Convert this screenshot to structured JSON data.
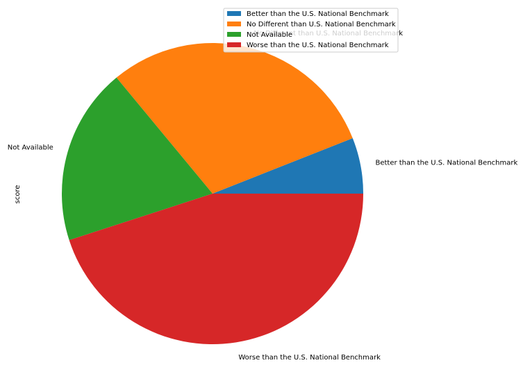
{
  "chart_data": {
    "type": "pie",
    "ylabel": "score",
    "categories": [
      "Better than the U.S. National Benchmark",
      "No Different than U.S. National Benchmark",
      "Not Available",
      "Worse than the U.S. National Benchmark"
    ],
    "values": [
      6,
      30,
      19,
      45
    ],
    "colors": [
      "#1f77b4",
      "#ff7f0e",
      "#2ca02c",
      "#d62728"
    ],
    "startangle": 0,
    "direction": "counterclockwise",
    "legend": "top-right"
  }
}
